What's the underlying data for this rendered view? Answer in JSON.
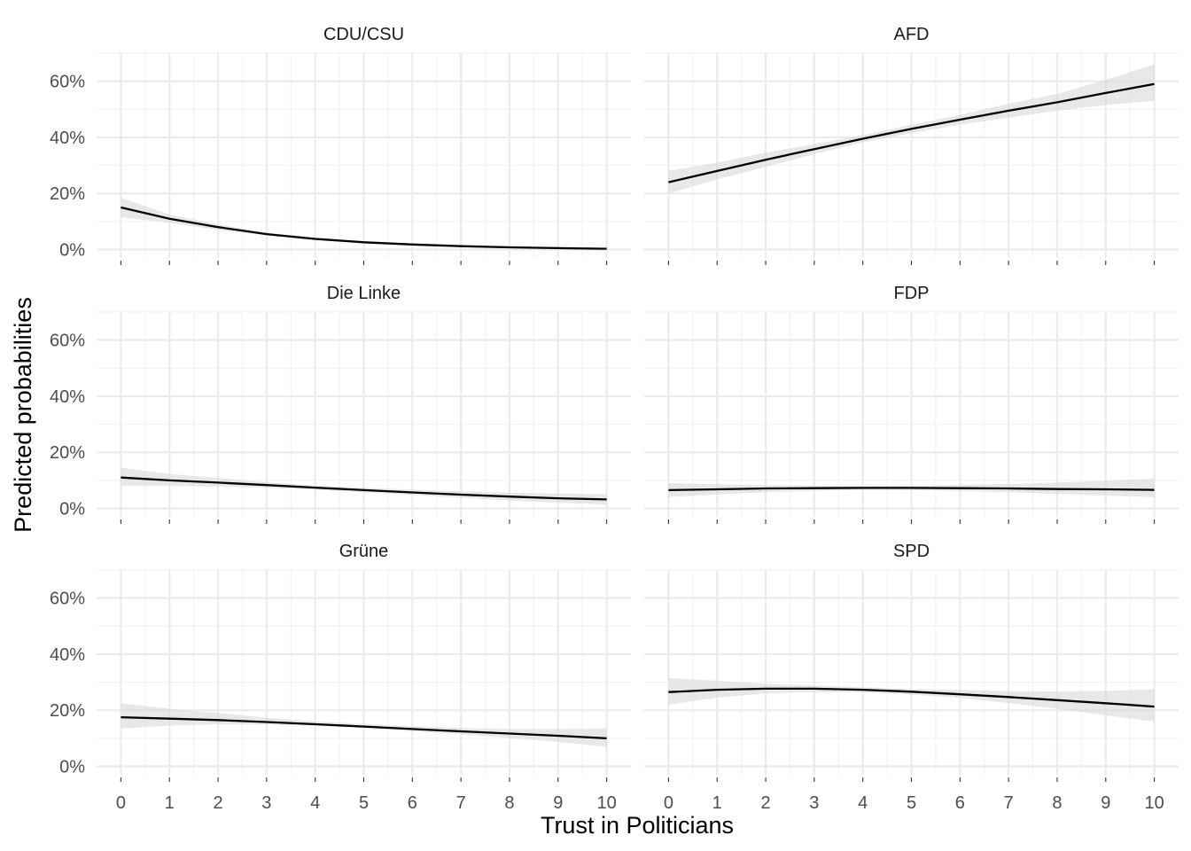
{
  "chart_data": {
    "type": "line",
    "xlabel": "Trust in Politicians",
    "ylabel": "Predicted probabilities",
    "x_ticks": [
      0,
      1,
      2,
      3,
      4,
      5,
      6,
      7,
      8,
      9,
      10
    ],
    "y_ticks": [
      0,
      20,
      40,
      60
    ],
    "y_tick_labels": [
      "0%",
      "20%",
      "40%",
      "60%"
    ],
    "xlim": [
      -0.5,
      10.5
    ],
    "ylim": [
      -3,
      70
    ],
    "grid": true,
    "line_color": "#000000",
    "ribbon_color": "#d9d9d9",
    "facets": [
      {
        "title": "CDU/CSU",
        "x": [
          0,
          1,
          2,
          3,
          4,
          5,
          6,
          7,
          8,
          9,
          10
        ],
        "y": [
          15,
          11,
          8,
          5.5,
          3.8,
          2.6,
          1.8,
          1.2,
          0.8,
          0.5,
          0.3
        ],
        "lower": [
          11.5,
          9.5,
          7,
          5,
          3.3,
          2.2,
          1.4,
          0.9,
          0.5,
          0.2,
          0.1
        ],
        "upper": [
          18.5,
          12.5,
          9,
          6,
          4.3,
          3,
          2.2,
          1.5,
          1.1,
          0.8,
          0.6
        ]
      },
      {
        "title": "AFD",
        "x": [
          0,
          1,
          2,
          3,
          4,
          5,
          6,
          7,
          8,
          9,
          10
        ],
        "y": [
          24,
          28,
          32,
          35.8,
          39.5,
          43,
          46.3,
          49.5,
          52.5,
          55.8,
          59
        ],
        "lower": [
          20,
          25,
          29.5,
          34,
          38.2,
          41.5,
          44.5,
          47,
          49.5,
          51.5,
          53
        ],
        "upper": [
          28,
          31,
          34.5,
          37.6,
          40.8,
          44.5,
          48,
          52,
          55.5,
          60.5,
          66
        ]
      },
      {
        "title": "Die Linke",
        "x": [
          0,
          1,
          2,
          3,
          4,
          5,
          6,
          7,
          8,
          9,
          10
        ],
        "y": [
          11,
          10,
          9.2,
          8.3,
          7.4,
          6.5,
          5.7,
          4.9,
          4.2,
          3.6,
          3.2
        ],
        "lower": [
          8,
          8,
          7.8,
          7.4,
          6.7,
          5.8,
          4.8,
          3.8,
          2.8,
          2,
          1.4
        ],
        "upper": [
          14.5,
          12.3,
          10.8,
          9.3,
          8.2,
          7.3,
          6.7,
          6.1,
          5.6,
          5.3,
          5.1
        ]
      },
      {
        "title": "FDP",
        "x": [
          0,
          1,
          2,
          3,
          4,
          5,
          6,
          7,
          8,
          9,
          10
        ],
        "y": [
          6.5,
          6.8,
          7.1,
          7.2,
          7.3,
          7.3,
          7.2,
          7.1,
          6.9,
          6.8,
          6.6
        ],
        "lower": [
          4,
          5,
          5.8,
          6.3,
          6.6,
          6.5,
          6.2,
          5.8,
          5.2,
          4.6,
          4
        ],
        "upper": [
          9,
          8.6,
          8.3,
          8.1,
          8,
          8.1,
          8.4,
          8.7,
          9.2,
          9.9,
          10.6
        ]
      },
      {
        "title": "Grüne",
        "x": [
          0,
          1,
          2,
          3,
          4,
          5,
          6,
          7,
          8,
          9,
          10
        ],
        "y": [
          17.5,
          17,
          16.5,
          15.8,
          15,
          14.2,
          13.3,
          12.5,
          11.7,
          10.9,
          10
        ],
        "lower": [
          13.5,
          14.5,
          15,
          14.9,
          14.5,
          13.6,
          12.6,
          11.4,
          10.1,
          8.7,
          7
        ],
        "upper": [
          22.5,
          20.5,
          19,
          17.3,
          16,
          15.1,
          14.3,
          13.7,
          13.3,
          13.3,
          13.5
        ]
      },
      {
        "title": "SPD",
        "x": [
          0,
          1,
          2,
          3,
          4,
          5,
          6,
          7,
          8,
          9,
          10
        ],
        "y": [
          26.5,
          27.3,
          27.7,
          27.7,
          27.3,
          26.6,
          25.7,
          24.7,
          23.6,
          22.5,
          21.3
        ],
        "lower": [
          22,
          24.5,
          26,
          26.5,
          26.4,
          25.6,
          24.4,
          22.6,
          20.5,
          18.2,
          16
        ],
        "upper": [
          31.5,
          30.5,
          29.5,
          28.8,
          28.2,
          27.6,
          27.2,
          26.8,
          26.7,
          26.9,
          27.5
        ]
      }
    ]
  }
}
